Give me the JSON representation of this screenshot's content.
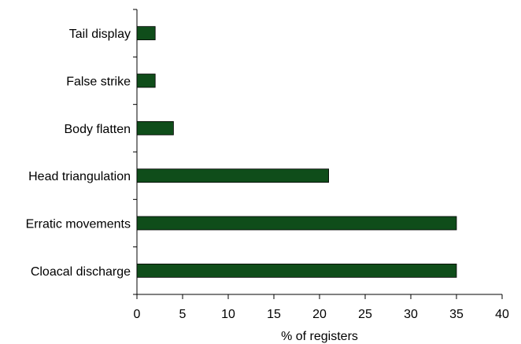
{
  "chart_data": {
    "type": "bar",
    "orientation": "horizontal",
    "categories": [
      "Tail display",
      "False strike",
      "Body flatten",
      "Head triangulation",
      "Erratic movements",
      "Cloacal discharge"
    ],
    "values": [
      2,
      2,
      4,
      21,
      35,
      35
    ],
    "title": "",
    "xlabel": "% of registers",
    "ylabel": "",
    "xlim": [
      0,
      40
    ],
    "xticks": [
      "0",
      "5",
      "10",
      "15",
      "20",
      "25",
      "30",
      "35",
      "40"
    ],
    "grid": false,
    "bar_color": "#0f4d1a"
  }
}
